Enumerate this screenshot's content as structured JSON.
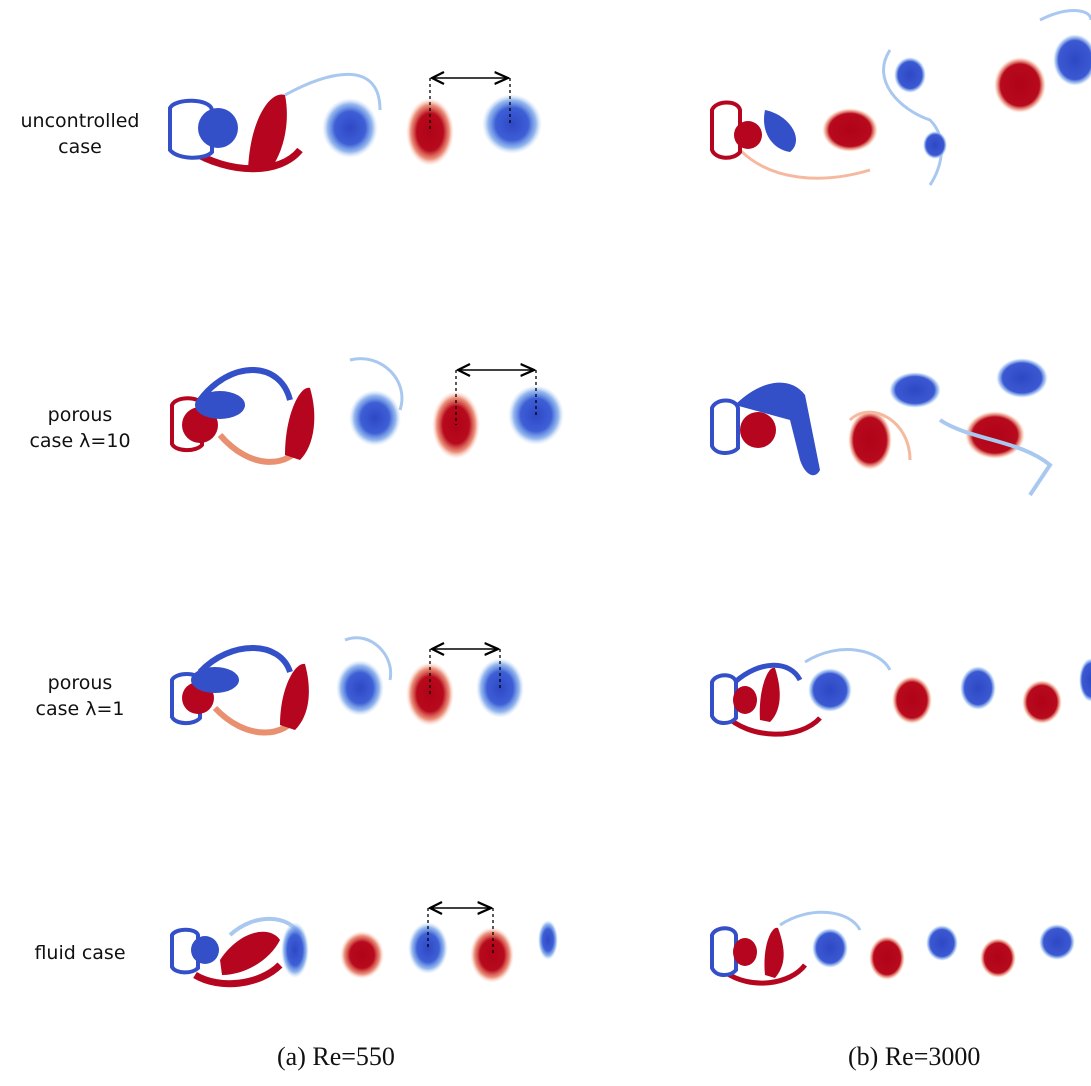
{
  "rows": [
    {
      "label_lines": [
        "uncontrolled",
        "case"
      ]
    },
    {
      "label_lines": [
        "porous",
        "case λ=10"
      ]
    },
    {
      "label_lines": [
        "porous",
        "case λ=1"
      ]
    },
    {
      "label_lines": [
        "fluid case"
      ]
    }
  ],
  "captions": {
    "left": "(a) Re=550",
    "right": "(b) Re=3000"
  },
  "colors": {
    "positive": "#b5051f",
    "negative": "#3450c8",
    "light_positive": "#f6b9a0",
    "light_negative": "#a9c8f0"
  }
}
